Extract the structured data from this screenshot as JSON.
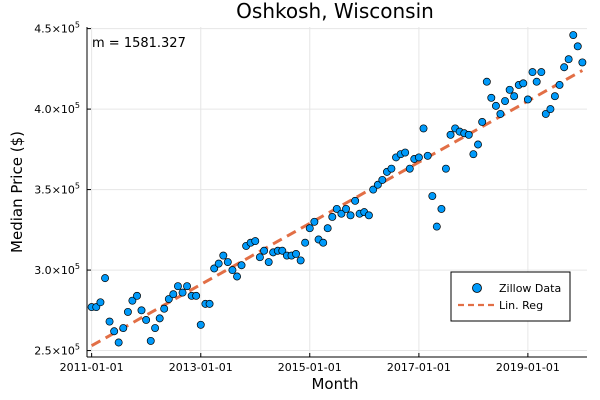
{
  "chart_data": {
    "type": "scatter",
    "title": "Oshkosh, Wisconsin",
    "xlabel": "Month",
    "ylabel": "Median Price ($)",
    "annotation": "m = 1581.327",
    "x_ticks": [
      "2011-01-01",
      "2013-01-01",
      "2015-01-01",
      "2017-01-01",
      "2019-01-01"
    ],
    "y_ticks": [
      {
        "value": 250000,
        "mantissa": "2.5",
        "base": "×10",
        "exp": "5"
      },
      {
        "value": 300000,
        "mantissa": "3.0",
        "base": "×10",
        "exp": "5"
      },
      {
        "value": 350000,
        "mantissa": "3.5",
        "base": "×10",
        "exp": "5"
      },
      {
        "value": 400000,
        "mantissa": "4.0",
        "base": "×10",
        "exp": "5"
      },
      {
        "value": 450000,
        "mantissa": "4.5",
        "base": "×10",
        "exp": "5"
      }
    ],
    "xlim": [
      "2010-12-01",
      "2020-02-01"
    ],
    "ylim": [
      246000,
      451000
    ],
    "grid": true,
    "legend_position": "bottom-right",
    "series": [
      {
        "name": "Zillow Data",
        "kind": "scatter",
        "color": "#009AFA",
        "points": [
          [
            "2011-01-01",
            277000
          ],
          [
            "2011-02-01",
            277000
          ],
          [
            "2011-03-01",
            280000
          ],
          [
            "2011-04-01",
            295000
          ],
          [
            "2011-05-01",
            268000
          ],
          [
            "2011-06-01",
            262000
          ],
          [
            "2011-07-01",
            255000
          ],
          [
            "2011-08-01",
            264000
          ],
          [
            "2011-09-01",
            274000
          ],
          [
            "2011-10-01",
            281000
          ],
          [
            "2011-11-01",
            284000
          ],
          [
            "2011-12-01",
            275000
          ],
          [
            "2012-01-01",
            269000
          ],
          [
            "2012-02-01",
            256000
          ],
          [
            "2012-03-01",
            264000
          ],
          [
            "2012-04-01",
            270000
          ],
          [
            "2012-05-01",
            276000
          ],
          [
            "2012-06-01",
            282000
          ],
          [
            "2012-07-01",
            285000
          ],
          [
            "2012-08-01",
            290000
          ],
          [
            "2012-09-01",
            286000
          ],
          [
            "2012-10-01",
            290000
          ],
          [
            "2012-11-01",
            284000
          ],
          [
            "2012-12-01",
            284000
          ],
          [
            "2013-01-01",
            266000
          ],
          [
            "2013-02-01",
            279000
          ],
          [
            "2013-03-01",
            279000
          ],
          [
            "2013-04-01",
            301000
          ],
          [
            "2013-05-01",
            304000
          ],
          [
            "2013-06-01",
            309000
          ],
          [
            "2013-07-01",
            305000
          ],
          [
            "2013-08-01",
            300000
          ],
          [
            "2013-09-01",
            296000
          ],
          [
            "2013-10-01",
            303000
          ],
          [
            "2013-11-01",
            315000
          ],
          [
            "2013-12-01",
            317000
          ],
          [
            "2014-01-01",
            318000
          ],
          [
            "2014-02-01",
            308000
          ],
          [
            "2014-03-01",
            312000
          ],
          [
            "2014-04-01",
            305000
          ],
          [
            "2014-05-01",
            311000
          ],
          [
            "2014-06-01",
            312000
          ],
          [
            "2014-07-01",
            312000
          ],
          [
            "2014-08-01",
            309000
          ],
          [
            "2014-09-01",
            309000
          ],
          [
            "2014-10-01",
            310000
          ],
          [
            "2014-11-01",
            306000
          ],
          [
            "2014-12-01",
            317000
          ],
          [
            "2015-01-01",
            326000
          ],
          [
            "2015-02-01",
            330000
          ],
          [
            "2015-03-01",
            319000
          ],
          [
            "2015-04-01",
            317000
          ],
          [
            "2015-05-01",
            326000
          ],
          [
            "2015-06-01",
            333000
          ],
          [
            "2015-07-01",
            338000
          ],
          [
            "2015-08-01",
            335000
          ],
          [
            "2015-09-01",
            338000
          ],
          [
            "2015-10-01",
            334000
          ],
          [
            "2015-11-01",
            343000
          ],
          [
            "2015-12-01",
            335000
          ],
          [
            "2016-01-01",
            336000
          ],
          [
            "2016-02-01",
            334000
          ],
          [
            "2016-03-01",
            350000
          ],
          [
            "2016-04-01",
            353000
          ],
          [
            "2016-05-01",
            356000
          ],
          [
            "2016-06-01",
            361000
          ],
          [
            "2016-07-01",
            363000
          ],
          [
            "2016-08-01",
            370000
          ],
          [
            "2016-09-01",
            372000
          ],
          [
            "2016-10-01",
            373000
          ],
          [
            "2016-11-01",
            363000
          ],
          [
            "2016-12-01",
            369000
          ],
          [
            "2017-01-01",
            370000
          ],
          [
            "2017-02-01",
            388000
          ],
          [
            "2017-03-01",
            371000
          ],
          [
            "2017-04-01",
            346000
          ],
          [
            "2017-05-01",
            327000
          ],
          [
            "2017-06-01",
            338000
          ],
          [
            "2017-07-01",
            363000
          ],
          [
            "2017-08-01",
            384000
          ],
          [
            "2017-09-01",
            388000
          ],
          [
            "2017-10-01",
            386000
          ],
          [
            "2017-11-01",
            385000
          ],
          [
            "2017-12-01",
            384000
          ],
          [
            "2018-01-01",
            372000
          ],
          [
            "2018-02-01",
            378000
          ],
          [
            "2018-03-01",
            392000
          ],
          [
            "2018-04-01",
            417000
          ],
          [
            "2018-05-01",
            407000
          ],
          [
            "2018-06-01",
            402000
          ],
          [
            "2018-07-01",
            397000
          ],
          [
            "2018-08-01",
            405000
          ],
          [
            "2018-09-01",
            412000
          ],
          [
            "2018-10-01",
            408000
          ],
          [
            "2018-11-01",
            415000
          ],
          [
            "2018-12-01",
            416000
          ],
          [
            "2019-01-01",
            406000
          ],
          [
            "2019-02-01",
            423000
          ],
          [
            "2019-03-01",
            417000
          ],
          [
            "2019-04-01",
            423000
          ],
          [
            "2019-05-01",
            397000
          ],
          [
            "2019-06-01",
            400000
          ],
          [
            "2019-07-01",
            408000
          ],
          [
            "2019-08-01",
            415000
          ],
          [
            "2019-09-01",
            426000
          ],
          [
            "2019-10-01",
            431000
          ],
          [
            "2019-11-01",
            446000
          ],
          [
            "2019-12-01",
            439000
          ],
          [
            "2020-01-01",
            429000
          ]
        ]
      },
      {
        "name": "Lin. Reg",
        "kind": "line",
        "style": "dashed",
        "color": "#E26F46",
        "points": [
          [
            "2011-01-01",
            253000
          ],
          [
            "2020-01-01",
            424000
          ]
        ]
      }
    ]
  }
}
